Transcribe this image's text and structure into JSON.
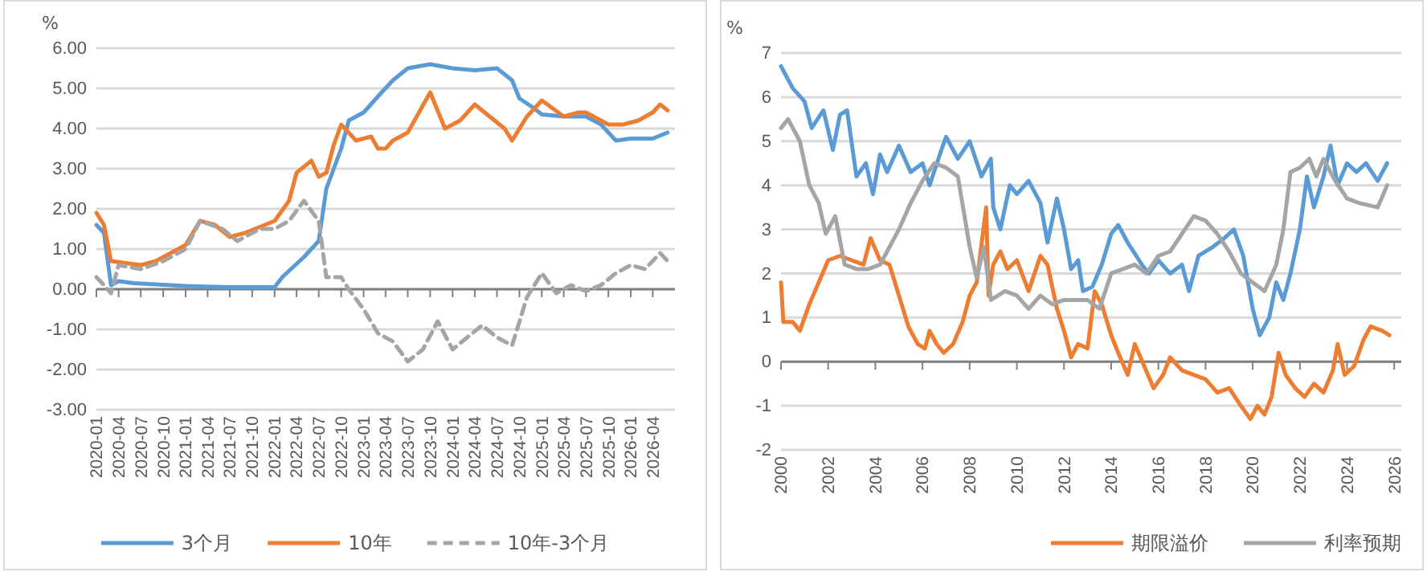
{
  "chart_data": [
    {
      "type": "line",
      "ylabel": "%",
      "xlim": [
        "2020-01",
        "2026-07"
      ],
      "xticks": [
        "2020-01",
        "2020-04",
        "2020-07",
        "2020-10",
        "2021-01",
        "2021-04",
        "2021-07",
        "2021-10",
        "2022-01",
        "2022-04",
        "2022-07",
        "2022-10",
        "2023-01",
        "2023-04",
        "2023-07",
        "2023-10",
        "2024-01",
        "2024-04",
        "2024-07",
        "2024-10",
        "2025-01",
        "2025-04",
        "2025-07",
        "2025-10",
        "2026-01",
        "2026-04"
      ],
      "ylim": [
        -3,
        6
      ],
      "yticks": [
        {
          "value": -3,
          "label": "-3.00"
        },
        {
          "value": -2,
          "label": "-2.00"
        },
        {
          "value": -1,
          "label": "-1.00"
        },
        {
          "value": 0,
          "label": "0.00"
        },
        {
          "value": 1,
          "label": "1.00"
        },
        {
          "value": 2,
          "label": "2.00"
        },
        {
          "value": 3,
          "label": "3.00"
        },
        {
          "value": 4,
          "label": "4.00"
        },
        {
          "value": 5,
          "label": "5.00"
        },
        {
          "value": 6,
          "label": "6.00"
        }
      ],
      "grid": "y",
      "legend": "bottom",
      "series": [
        {
          "name": "3个月",
          "color": "#5b9bd5",
          "x": [
            "2020-01",
            "2020-02",
            "2020-03",
            "2020-04",
            "2020-06",
            "2021-01",
            "2021-07",
            "2022-01",
            "2022-02",
            "2022-05",
            "2022-07",
            "2022-08",
            "2022-10",
            "2022-11",
            "2023-01",
            "2023-03",
            "2023-05",
            "2023-07",
            "2023-10",
            "2024-01",
            "2024-04",
            "2024-07",
            "2024-09",
            "2024-10",
            "2024-12",
            "2025-01",
            "2025-04",
            "2025-07",
            "2025-09",
            "2025-11",
            "2026-01",
            "2026-04",
            "2026-06"
          ],
          "values": [
            1.6,
            1.4,
            0.1,
            0.2,
            0.15,
            0.08,
            0.05,
            0.05,
            0.3,
            0.8,
            1.2,
            2.5,
            3.5,
            4.2,
            4.4,
            4.8,
            5.2,
            5.5,
            5.6,
            5.5,
            5.45,
            5.5,
            5.2,
            4.75,
            4.5,
            4.35,
            4.3,
            4.3,
            4.1,
            3.7,
            3.75,
            3.75,
            3.9
          ]
        },
        {
          "name": "10年",
          "color": "#ed7d31",
          "x": [
            "2020-01",
            "2020-02",
            "2020-03",
            "2020-05",
            "2020-07",
            "2020-09",
            "2020-11",
            "2021-01",
            "2021-03",
            "2021-05",
            "2021-07",
            "2021-09",
            "2021-11",
            "2022-01",
            "2022-03",
            "2022-04",
            "2022-06",
            "2022-07",
            "2022-08",
            "2022-09",
            "2022-10",
            "2022-12",
            "2023-02",
            "2023-03",
            "2023-04",
            "2023-05",
            "2023-07",
            "2023-10",
            "2023-12",
            "2024-02",
            "2024-04",
            "2024-06",
            "2024-08",
            "2024-09",
            "2024-11",
            "2025-01",
            "2025-04",
            "2025-06",
            "2025-07",
            "2025-10",
            "2025-12",
            "2026-02",
            "2026-04",
            "2026-05",
            "2026-06"
          ],
          "values": [
            1.9,
            1.6,
            0.7,
            0.65,
            0.6,
            0.7,
            0.9,
            1.1,
            1.7,
            1.6,
            1.3,
            1.4,
            1.55,
            1.7,
            2.2,
            2.9,
            3.2,
            2.8,
            2.9,
            3.6,
            4.1,
            3.7,
            3.8,
            3.5,
            3.5,
            3.7,
            3.9,
            4.9,
            4.0,
            4.2,
            4.6,
            4.3,
            4.0,
            3.7,
            4.3,
            4.7,
            4.3,
            4.4,
            4.4,
            4.1,
            4.1,
            4.2,
            4.4,
            4.6,
            4.45
          ]
        },
        {
          "name": "10年-3个月",
          "color": "#a5a5a5",
          "line_style": "dashed",
          "x": [
            "2020-01",
            "2020-02",
            "2020-03",
            "2020-04",
            "2020-07",
            "2020-10",
            "2021-01",
            "2021-03",
            "2021-06",
            "2021-08",
            "2021-11",
            "2022-01",
            "2022-03",
            "2022-05",
            "2022-07",
            "2022-08",
            "2022-10",
            "2022-11",
            "2023-01",
            "2023-03",
            "2023-05",
            "2023-07",
            "2023-09",
            "2023-11",
            "2024-01",
            "2024-03",
            "2024-05",
            "2024-07",
            "2024-09",
            "2024-11",
            "2025-01",
            "2025-03",
            "2025-05",
            "2025-07",
            "2025-09",
            "2025-11",
            "2026-01",
            "2026-03",
            "2026-05",
            "2026-06"
          ],
          "values": [
            0.3,
            0.1,
            -0.1,
            0.6,
            0.5,
            0.7,
            1.0,
            1.7,
            1.5,
            1.2,
            1.5,
            1.5,
            1.7,
            2.2,
            1.7,
            0.3,
            0.3,
            0.0,
            -0.5,
            -1.1,
            -1.3,
            -1.8,
            -1.5,
            -0.8,
            -1.5,
            -1.2,
            -0.9,
            -1.2,
            -1.4,
            -0.2,
            0.4,
            -0.1,
            0.1,
            -0.05,
            0.1,
            0.4,
            0.6,
            0.5,
            0.9,
            0.7
          ]
        }
      ]
    },
    {
      "type": "line",
      "ylabel": "%",
      "xlim": [
        2000,
        2026.3
      ],
      "xticks": [
        2000,
        2002,
        2004,
        2006,
        2008,
        2010,
        2012,
        2014,
        2016,
        2018,
        2020,
        2022,
        2024,
        2026
      ],
      "ylim": [
        -2,
        7
      ],
      "yticks": [
        -2,
        -1,
        0,
        1,
        2,
        3,
        4,
        5,
        6,
        7
      ],
      "grid": "y",
      "legend": "bottom",
      "series": [
        {
          "color": "#5b9bd5",
          "x": [
            2000,
            2000.5,
            2001,
            2001.3,
            2001.8,
            2002.2,
            2002.5,
            2002.8,
            2003.2,
            2003.6,
            2003.9,
            2004.2,
            2004.5,
            2005,
            2005.5,
            2006,
            2006.3,
            2006.8,
            2007,
            2007.5,
            2008,
            2008.5,
            2008.9,
            2009,
            2009.3,
            2009.7,
            2010,
            2010.5,
            2011,
            2011.3,
            2011.7,
            2012,
            2012.3,
            2012.6,
            2012.8,
            2013.2,
            2013.6,
            2014,
            2014.3,
            2014.7,
            2015.3,
            2015.6,
            2016,
            2016.5,
            2017,
            2017.3,
            2017.7,
            2018.3,
            2018.8,
            2019.2,
            2019.6,
            2020,
            2020.3,
            2020.7,
            2021,
            2021.3,
            2021.6,
            2022,
            2022.3,
            2022.6,
            2023,
            2023.3,
            2023.6,
            2024,
            2024.4,
            2024.8,
            2025.3,
            2025.7
          ],
          "values": [
            6.7,
            6.2,
            5.9,
            5.3,
            5.7,
            4.8,
            5.6,
            5.7,
            4.2,
            4.5,
            3.8,
            4.7,
            4.3,
            4.9,
            4.3,
            4.5,
            4.0,
            4.8,
            5.1,
            4.6,
            5.0,
            4.2,
            4.6,
            3.5,
            3.0,
            4.0,
            3.8,
            4.1,
            3.6,
            2.7,
            3.7,
            3.0,
            2.1,
            2.3,
            1.6,
            1.7,
            2.2,
            2.9,
            3.1,
            2.7,
            2.2,
            2.0,
            2.3,
            2.0,
            2.2,
            1.6,
            2.4,
            2.6,
            2.8,
            3.0,
            2.4,
            1.2,
            0.6,
            1.0,
            1.8,
            1.4,
            2.0,
            3.0,
            4.2,
            3.5,
            4.2,
            4.9,
            4.0,
            4.5,
            4.3,
            4.5,
            4.1,
            4.5
          ]
        },
        {
          "name": "期限溢价",
          "color": "#ed7d31",
          "x": [
            2000,
            2000.1,
            2000.5,
            2000.8,
            2001.2,
            2001.6,
            2002,
            2002.5,
            2003,
            2003.5,
            2003.8,
            2004.2,
            2004.6,
            2005,
            2005.4,
            2005.8,
            2006.1,
            2006.3,
            2006.6,
            2006.9,
            2007.3,
            2007.7,
            2008,
            2008.3,
            2008.7,
            2008.8,
            2009,
            2009.3,
            2009.6,
            2010,
            2010.5,
            2011,
            2011.3,
            2011.7,
            2012,
            2012.3,
            2012.6,
            2013,
            2013.3,
            2013.6,
            2014,
            2014.3,
            2014.7,
            2015,
            2015.4,
            2015.8,
            2016.2,
            2016.5,
            2017,
            2017.5,
            2018,
            2018.5,
            2019,
            2019.5,
            2019.9,
            2020.2,
            2020.5,
            2020.8,
            2021.1,
            2021.4,
            2021.8,
            2022.2,
            2022.6,
            2023,
            2023.4,
            2023.6,
            2023.9,
            2024.3,
            2024.7,
            2025,
            2025.5,
            2025.8
          ],
          "values": [
            1.8,
            0.9,
            0.9,
            0.7,
            1.3,
            1.8,
            2.3,
            2.4,
            2.3,
            2.2,
            2.8,
            2.3,
            2.2,
            1.5,
            0.8,
            0.4,
            0.3,
            0.7,
            0.4,
            0.2,
            0.4,
            0.9,
            1.5,
            1.8,
            3.5,
            1.5,
            2.2,
            2.5,
            2.1,
            2.3,
            1.6,
            2.4,
            2.2,
            1.2,
            0.7,
            0.1,
            0.4,
            0.3,
            1.6,
            1.3,
            0.6,
            0.2,
            -0.3,
            0.4,
            -0.1,
            -0.6,
            -0.3,
            0.1,
            -0.2,
            -0.3,
            -0.4,
            -0.7,
            -0.6,
            -1.0,
            -1.3,
            -1.0,
            -1.2,
            -0.8,
            0.2,
            -0.3,
            -0.6,
            -0.8,
            -0.5,
            -0.7,
            -0.2,
            0.4,
            -0.3,
            -0.1,
            0.5,
            0.8,
            0.7,
            0.6
          ]
        },
        {
          "name": "利率预期",
          "color": "#a5a5a5",
          "x": [
            2000,
            2000.3,
            2000.8,
            2001.2,
            2001.6,
            2001.9,
            2002.3,
            2002.7,
            2003.2,
            2003.7,
            2004.2,
            2004.6,
            2005,
            2005.5,
            2006,
            2006.5,
            2007,
            2007.5,
            2008,
            2008.3,
            2008.6,
            2008.9,
            2009.5,
            2010,
            2010.5,
            2011,
            2011.5,
            2012,
            2012.5,
            2013,
            2013.5,
            2014,
            2014.5,
            2015,
            2015.5,
            2016,
            2016.5,
            2017,
            2017.5,
            2018,
            2018.5,
            2019,
            2019.5,
            2020,
            2020.5,
            2021,
            2021.3,
            2021.6,
            2022,
            2022.4,
            2022.7,
            2023,
            2023.5,
            2024,
            2024.5,
            2025.3,
            2025.7
          ],
          "values": [
            5.3,
            5.5,
            5.0,
            4.0,
            3.6,
            2.9,
            3.3,
            2.2,
            2.1,
            2.1,
            2.2,
            2.6,
            3.0,
            3.6,
            4.1,
            4.5,
            4.4,
            4.2,
            2.6,
            1.9,
            2.6,
            1.4,
            1.6,
            1.5,
            1.2,
            1.5,
            1.3,
            1.4,
            1.4,
            1.4,
            1.2,
            2.0,
            2.1,
            2.2,
            2.0,
            2.4,
            2.5,
            2.9,
            3.3,
            3.2,
            2.9,
            2.5,
            2.0,
            1.8,
            1.6,
            2.2,
            3.0,
            4.3,
            4.4,
            4.6,
            4.2,
            4.6,
            4.1,
            3.7,
            3.6,
            3.5,
            4.0
          ]
        }
      ]
    }
  ]
}
